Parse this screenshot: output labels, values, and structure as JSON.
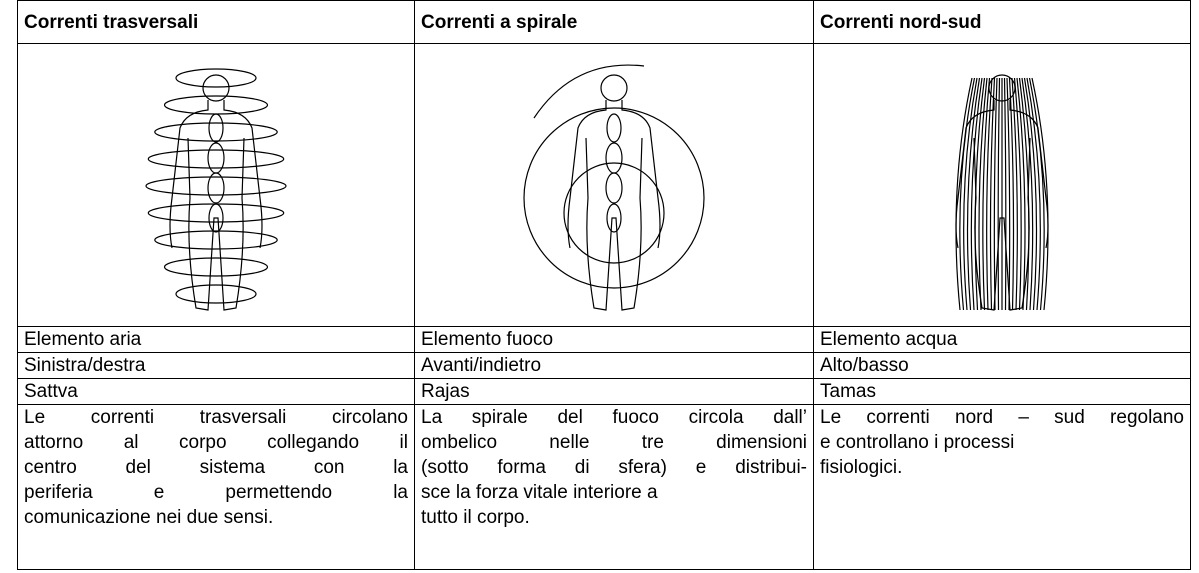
{
  "table": {
    "header": [
      "Correnti trasversali",
      "Correnti a spirale",
      "Correnti nord-sud"
    ],
    "rows": [
      [
        "Elemento aria",
        "Elemento fuoco",
        "Elemento acqua"
      ],
      [
        "Sinistra/destra",
        "Avanti/indietro",
        "Alto/basso"
      ],
      [
        "Sattva",
        "Rajas",
        "Tamas"
      ]
    ],
    "descriptions": [
      [
        "Le correnti trasversali circolano",
        "attorno al corpo collegando il",
        "centro del sistema con la",
        "periferia e permettendo la",
        "comunicazione nei due sensi."
      ],
      [
        "La spirale del fuoco circola dall’",
        "ombelico nelle tre dimensioni",
        "(sotto forma di sfera) e distribui-",
        "sce la forza vitale interiore a",
        "tutto il corpo."
      ],
      [
        "Le correnti nord – sud regolano",
        "e controllano i processi",
        "fisiologici."
      ]
    ]
  }
}
